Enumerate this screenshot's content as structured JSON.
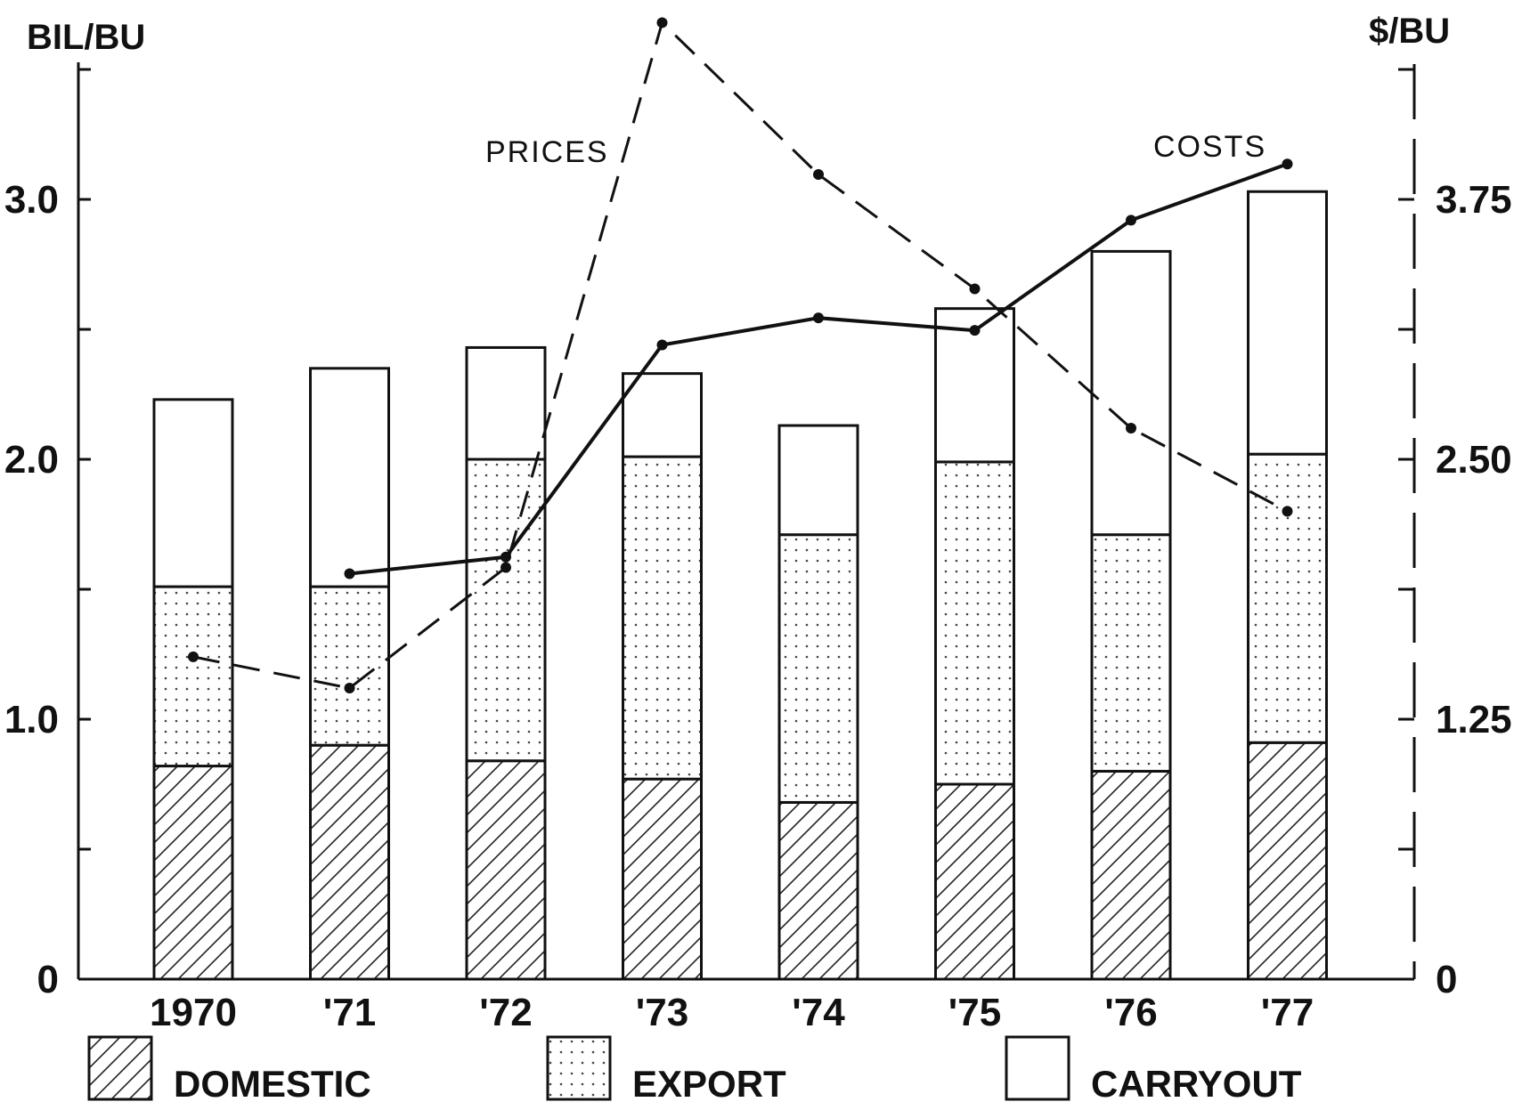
{
  "chart_data": {
    "type": "bar",
    "stacked": true,
    "categories": [
      "1970",
      "'71",
      "'72",
      "'73",
      "'74",
      "'75",
      "'76",
      "'77"
    ],
    "left_axis": {
      "unit_label": "BIL/BU",
      "ticks": [
        "0",
        "1.0",
        "2.0",
        "3.0"
      ],
      "range": [
        0,
        3.5
      ]
    },
    "right_axis": {
      "unit_label": "$/BU",
      "ticks": [
        "0",
        "1.25",
        "2.50",
        "3.75"
      ],
      "range": [
        0,
        4.4
      ]
    },
    "series": [
      {
        "name": "DOMESTIC",
        "pattern": "hatch",
        "values": [
          0.82,
          0.9,
          0.84,
          0.77,
          0.68,
          0.75,
          0.8,
          0.91
        ]
      },
      {
        "name": "EXPORT",
        "pattern": "dots",
        "values": [
          0.69,
          0.61,
          1.16,
          1.24,
          1.03,
          1.24,
          0.91,
          1.11
        ]
      },
      {
        "name": "CARRYOUT",
        "pattern": "blank",
        "values": [
          0.72,
          0.84,
          0.43,
          0.32,
          0.42,
          0.59,
          1.09,
          1.01
        ]
      }
    ],
    "lines": [
      {
        "name": "PRICES",
        "style": "dashed",
        "axis": "right",
        "values": [
          1.55,
          1.4,
          1.98,
          4.6,
          3.87,
          3.32,
          2.65,
          2.25
        ]
      },
      {
        "name": "COSTS",
        "style": "solid",
        "axis": "right",
        "values": [
          null,
          1.95,
          2.03,
          3.05,
          3.18,
          3.12,
          3.65,
          3.92
        ]
      }
    ],
    "legend": [
      "DOMESTIC",
      "EXPORT",
      "CARRYOUT"
    ],
    "legend_position": "bottom",
    "grid": false
  }
}
